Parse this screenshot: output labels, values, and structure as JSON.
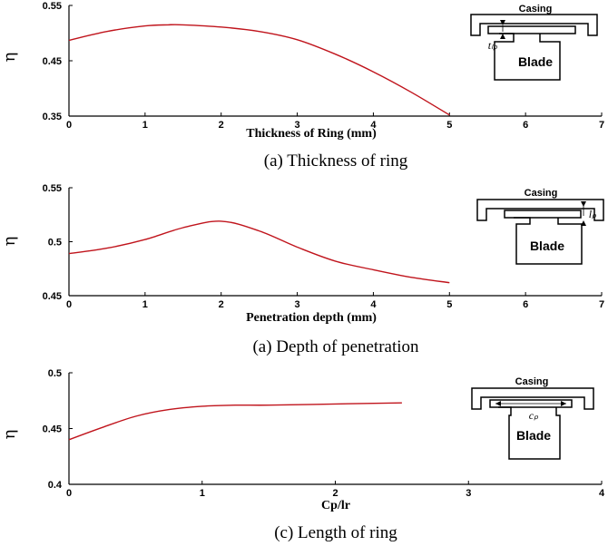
{
  "chart_data": [
    {
      "type": "line",
      "xlabel": "Thickness of Ring (mm)",
      "ylabel": "η",
      "xlim": [
        0,
        7
      ],
      "ylim": [
        0.35,
        0.55
      ],
      "xticks": [
        "0",
        "1",
        "2",
        "3",
        "4",
        "5",
        "6",
        "7"
      ],
      "yticks": [
        "0.35",
        "0.45",
        "0.55"
      ],
      "x": [
        0,
        0.5,
        1,
        1.3,
        1.5,
        2,
        2.5,
        3,
        3.5,
        4,
        4.5,
        5
      ],
      "y": [
        0.487,
        0.503,
        0.513,
        0.515,
        0.515,
        0.511,
        0.503,
        0.488,
        0.462,
        0.43,
        0.393,
        0.352
      ],
      "caption": "(a)  Thickness  of  ring",
      "schematic": {
        "casing": "Casing",
        "blade": "Blade",
        "symbol": "tₗₚ"
      }
    },
    {
      "type": "line",
      "xlabel": "Penetration depth (mm)",
      "ylabel": "η",
      "xlim": [
        0,
        7
      ],
      "ylim": [
        0.45,
        0.55
      ],
      "xticks": [
        "0",
        "1",
        "2",
        "3",
        "4",
        "5",
        "6",
        "7"
      ],
      "yticks": [
        "0.45",
        "0.5",
        "0.55"
      ],
      "x": [
        0,
        0.5,
        1,
        1.5,
        2,
        2.5,
        3,
        3.5,
        4,
        4.5,
        5
      ],
      "y": [
        0.489,
        0.494,
        0.502,
        0.513,
        0.519,
        0.51,
        0.495,
        0.482,
        0.474,
        0.467,
        0.462
      ],
      "caption": "(a)  Depth  of  penetration",
      "schematic": {
        "casing": "Casing",
        "blade": "Blade",
        "symbol": "lₚ"
      }
    },
    {
      "type": "line",
      "xlabel": "Cp/lr",
      "ylabel": "η",
      "xlim": [
        0,
        4
      ],
      "ylim": [
        0.4,
        0.5
      ],
      "xticks": [
        "0",
        "1",
        "2",
        "3",
        "4"
      ],
      "yticks": [
        "0.4",
        "0.45",
        "0.5"
      ],
      "x": [
        0,
        0.25,
        0.5,
        0.75,
        1,
        1.25,
        1.5,
        2,
        2.5
      ],
      "y": [
        0.44,
        0.451,
        0.461,
        0.467,
        0.47,
        0.471,
        0.471,
        0.472,
        0.473
      ],
      "caption": "(c)  Length  of  ring",
      "schematic": {
        "casing": "Casing",
        "blade": "Blade",
        "symbol": "cₚ"
      }
    }
  ],
  "style": {
    "line_color": "#c0141c"
  }
}
